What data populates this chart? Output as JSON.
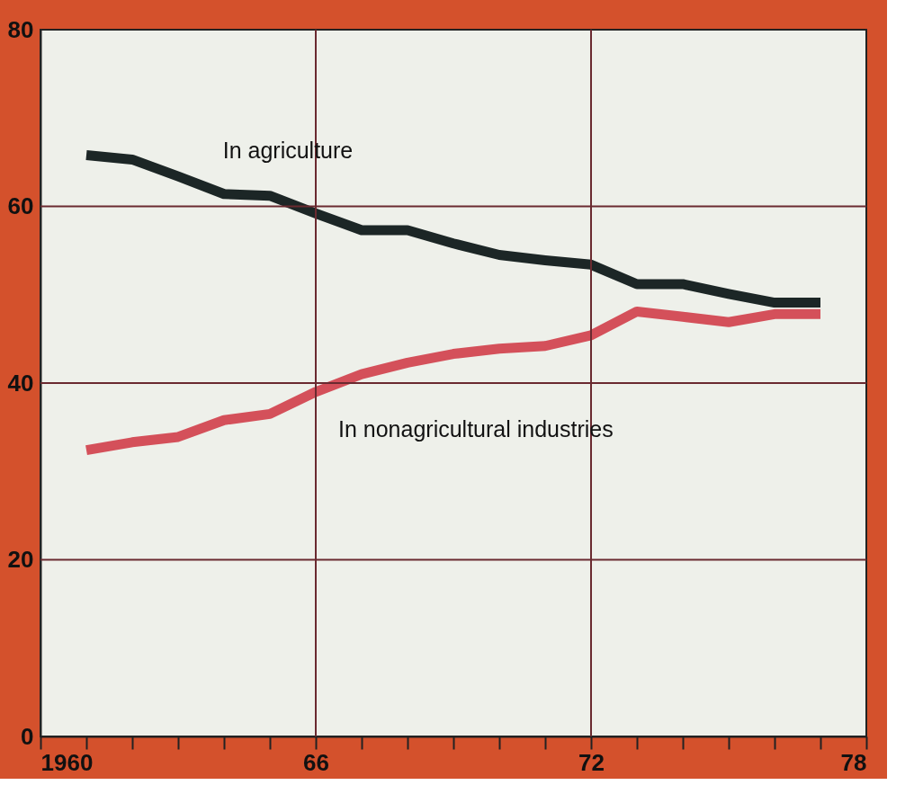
{
  "chart_data": {
    "type": "line",
    "x": [
      1961,
      1962,
      1963,
      1964,
      1965,
      1966,
      1967,
      1968,
      1969,
      1970,
      1971,
      1972,
      1973,
      1974,
      1975,
      1976,
      1977
    ],
    "series": [
      {
        "name": "In agriculture",
        "color": "#1c2626",
        "values": [
          65.8,
          65.3,
          63.4,
          61.4,
          61.2,
          59.2,
          57.3,
          57.3,
          55.8,
          54.5,
          53.9,
          53.4,
          51.2,
          51.2,
          50.1,
          49.1,
          49.1
        ]
      },
      {
        "name": "In nonagricultural industries",
        "color": "#d4505a",
        "values": [
          32.4,
          33.3,
          33.9,
          35.8,
          36.5,
          39.0,
          41.0,
          42.3,
          43.3,
          43.9,
          44.2,
          45.4,
          48.1,
          47.5,
          46.9,
          47.8,
          47.8
        ]
      }
    ],
    "xlim": [
      1960,
      1978
    ],
    "xticks": [
      {
        "value": 1960,
        "label": "1960"
      },
      {
        "value": 1961,
        "label": null
      },
      {
        "value": 1962,
        "label": null
      },
      {
        "value": 1963,
        "label": null
      },
      {
        "value": 1964,
        "label": null
      },
      {
        "value": 1965,
        "label": null
      },
      {
        "value": 1966,
        "label": "66"
      },
      {
        "value": 1967,
        "label": null
      },
      {
        "value": 1968,
        "label": null
      },
      {
        "value": 1969,
        "label": null
      },
      {
        "value": 1970,
        "label": null
      },
      {
        "value": 1971,
        "label": null
      },
      {
        "value": 1972,
        "label": "72"
      },
      {
        "value": 1973,
        "label": null
      },
      {
        "value": 1974,
        "label": null
      },
      {
        "value": 1975,
        "label": null
      },
      {
        "value": 1976,
        "label": null
      },
      {
        "value": 1977,
        "label": null
      },
      {
        "value": 1978,
        "label": "78"
      }
    ],
    "ylim": [
      0,
      80
    ],
    "yticks": [
      0,
      20,
      40,
      60,
      80
    ],
    "grid": true,
    "line_style": "solid",
    "marker": "none",
    "legend": false
  }
}
